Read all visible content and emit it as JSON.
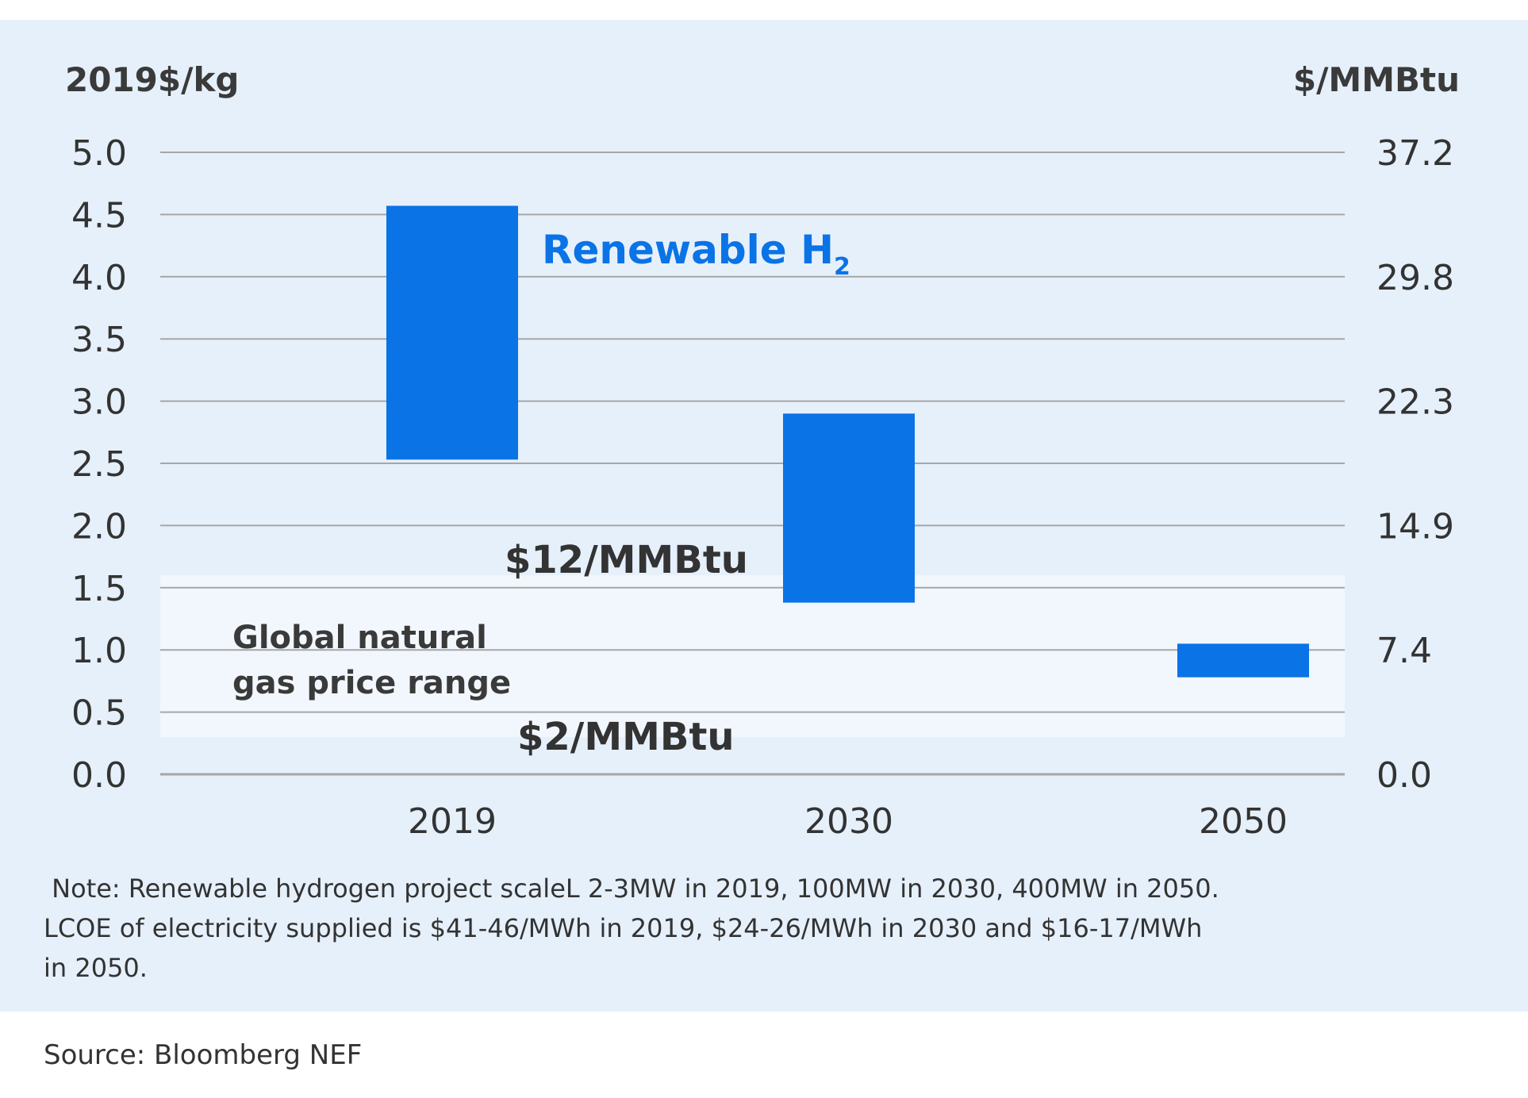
{
  "chart_data": {
    "type": "bar",
    "subtype": "floating-range",
    "categories": [
      "2019",
      "2030",
      "2050"
    ],
    "series": [
      {
        "name": "Renewable H",
        "name_subscript": "2",
        "ranges": [
          [
            2.53,
            4.57
          ],
          [
            1.38,
            2.9
          ],
          [
            0.78,
            1.05
          ]
        ],
        "color": "#0a73e6"
      }
    ],
    "left_axis": {
      "label": "2019$/kg",
      "ylim": [
        0,
        5.0
      ],
      "ticks": [
        "0.0",
        "0.5",
        "1.0",
        "1.5",
        "2.0",
        "2.5",
        "3.0",
        "3.5",
        "4.0",
        "4.5",
        "5.0"
      ]
    },
    "right_axis": {
      "label": "$/MMBtu",
      "ticks": [
        {
          "value": 0,
          "label": "0.0"
        },
        {
          "value": 1.0,
          "label": "7.4"
        },
        {
          "value": 2.0,
          "label": "14.9"
        },
        {
          "value": 3.0,
          "label": "22.3"
        },
        {
          "value": 4.0,
          "label": "29.8"
        },
        {
          "value": 5.0,
          "label": "37.2"
        }
      ]
    },
    "grid": true,
    "band": {
      "range": [
        0.3,
        1.6
      ],
      "label_lines": [
        "Global natural",
        "gas price range"
      ],
      "upper_label": "$12/MMBtu",
      "lower_label": "$2/MMBtu",
      "color": "#f2f7fd"
    },
    "colors": {
      "panel": "#e6f0fb",
      "grid": "#a6a6a6",
      "bar": "#0a73e6",
      "text": "#333333"
    }
  },
  "note": {
    "lines": [
      " Note: Renewable hydrogen project scaleL 2-3MW in 2019, 100MW in 2030, 400MW in 2050.",
      "LCOE of electricity supplied is $41-46/MWh in 2019, $24-26/MWh in 2030 and $16-17/MWh",
      "in 2050."
    ]
  },
  "source": "Source: Bloomberg NEF"
}
